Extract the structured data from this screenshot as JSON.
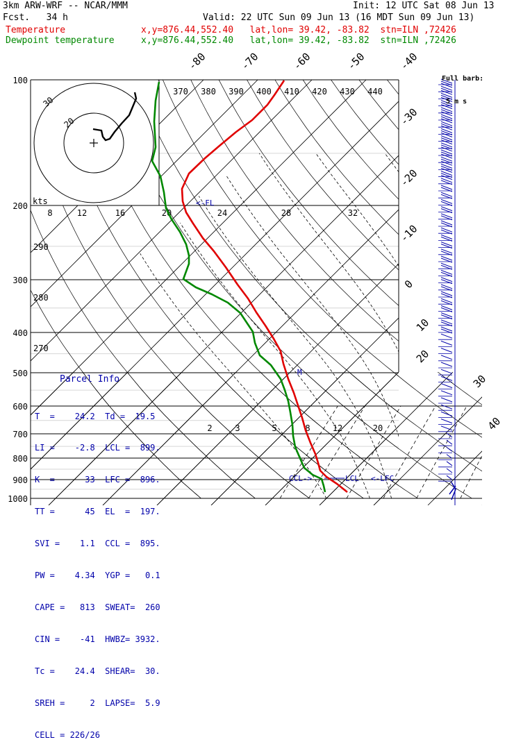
{
  "header": {
    "model": "3km ARW-WRF -- NCAR/MMM",
    "init": "Init: 12 UTC Sat 08 Jun 13",
    "fcst": "Fcst.   34 h",
    "valid": "Valid: 22 UTC Sun 09 Jun 13 (16 MDT Sun 09 Jun 13)",
    "temp_label": "Temperature",
    "temp_loc": "x,y=876.44,552.40   lat,lon= 39.42, -83.82  stn=ILN ,72426",
    "dew_label": "Dewpoint temperature",
    "dew_loc": "x,y=876.44,552.40   lat,lon= 39.42, -83.82  stn=ILN ,72426"
  },
  "barb_legend": {
    "line1": "Full barb:",
    "line2": "5 m s"
  },
  "colors": {
    "temperature": "#e00000",
    "dewpoint": "#008800",
    "info": "#0000aa",
    "barbs": "#0000aa"
  },
  "chart_data": {
    "type": "line",
    "ylabel_ticks": [
      "100",
      "200",
      "300",
      "400",
      "500",
      "600",
      "700",
      "800",
      "900",
      "1000"
    ],
    "pressure_levels": [
      100,
      200,
      300,
      400,
      500,
      600,
      700,
      800,
      900,
      1000
    ],
    "isotherm_labels": [
      "-80",
      "-70",
      "-60",
      "-50",
      "-40",
      "-30",
      "-20",
      "-10",
      "0",
      "10",
      "20",
      "30",
      "40"
    ],
    "theta_labels": [
      "370",
      "380",
      "390",
      "400",
      "410",
      "420",
      "430",
      "440"
    ],
    "theta_small_labels": [
      "290",
      "280",
      "270"
    ],
    "mixing_ratio_labels": [
      "2",
      "3",
      "5",
      "8",
      "12",
      "20"
    ],
    "hodograph": {
      "units": "kts",
      "ring_labels": [
        "8",
        "12",
        "16",
        "20",
        "24",
        "28",
        "32"
      ],
      "circle_labels": [
        "30",
        "20"
      ]
    },
    "markers": {
      "lcl": "LCL",
      "lfc": "<-LFC",
      "ccl": "CCL->",
      "m": "M",
      "fl": "<-FL"
    },
    "series": [
      {
        "name": "Temperature"
      },
      {
        "name": "Dewpoint temperature"
      }
    ]
  },
  "parcel_info": {
    "title": "Parcel Info",
    "rows": [
      "T  =    24.2  Td =  19.5",
      "LI =    -2.8  LCL =  899.",
      "K  =      33  LFC =  896.",
      "TT =      45  EL  =  197.",
      "SVI =    1.1  CCL =  895.",
      "PW =    4.34  YGP =   0.1",
      "CAPE =   813  SWEAT=  260",
      "CIN =    -41  HWBZ= 3932.",
      "Tc =    24.4  SHEAR=  30.",
      "SREH =     2  LAPSE=  5.9",
      "CELL = 226/26"
    ]
  }
}
